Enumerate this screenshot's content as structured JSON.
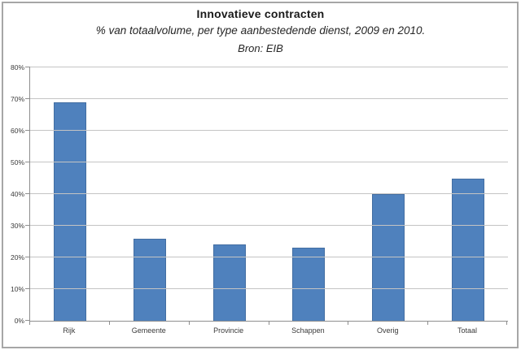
{
  "chart": {
    "title": "Innovatieve contracten",
    "subtitle": "% van totaalvolume, per type aanbestedende dienst, 2009 en 2010.",
    "source": "Bron: EIB"
  },
  "chart_data": {
    "type": "bar",
    "title": "Innovatieve contracten",
    "subtitle": "% van totaalvolume, per type aanbestedende dienst, 2009 en 2010.",
    "source": "Bron: EIB",
    "categories": [
      "Rijk",
      "Gemeente",
      "Provincie",
      "Schappen",
      "Overig",
      "Totaal"
    ],
    "values": [
      69,
      26,
      24,
      23,
      40,
      45
    ],
    "xlabel": "",
    "ylabel": "",
    "ylim": [
      0,
      80
    ],
    "ytick_step": 10,
    "ytick_labels": [
      "0%",
      "10%",
      "20%",
      "30%",
      "40%",
      "50%",
      "60%",
      "70%",
      "80%"
    ],
    "grid": true,
    "legend": false
  },
  "colors": {
    "bar": "#4f81bd",
    "bar_border": "#436ea2",
    "gridline": "#c4c4c4",
    "axis": "#8e8e8e",
    "frame_border": "#a6a6a6",
    "background": "#ffffff"
  }
}
